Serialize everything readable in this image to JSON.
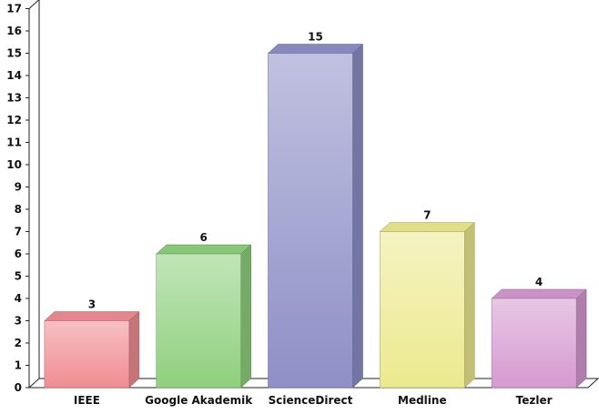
{
  "chart_data": {
    "type": "bar",
    "style": "3d-columns",
    "categories": [
      "IEEE",
      "Google Akademik",
      "ScienceDirect",
      "Medline",
      "Tezler"
    ],
    "values": [
      3,
      6,
      15,
      7,
      4
    ],
    "data_labels": [
      "3",
      "6",
      "15",
      "7",
      "4"
    ],
    "colors": [
      "#f08d92",
      "#8fd07e",
      "#8e8fc6",
      "#ecea8e",
      "#d69ad0"
    ],
    "ylim": [
      0,
      17
    ],
    "yticks": [
      "0",
      "1",
      "2",
      "3",
      "4",
      "5",
      "6",
      "7",
      "8",
      "9",
      "10",
      "11",
      "12",
      "13",
      "14",
      "15",
      "16",
      "17"
    ],
    "grid": false,
    "legend": "none",
    "title": "",
    "xlabel": "",
    "ylabel": ""
  }
}
